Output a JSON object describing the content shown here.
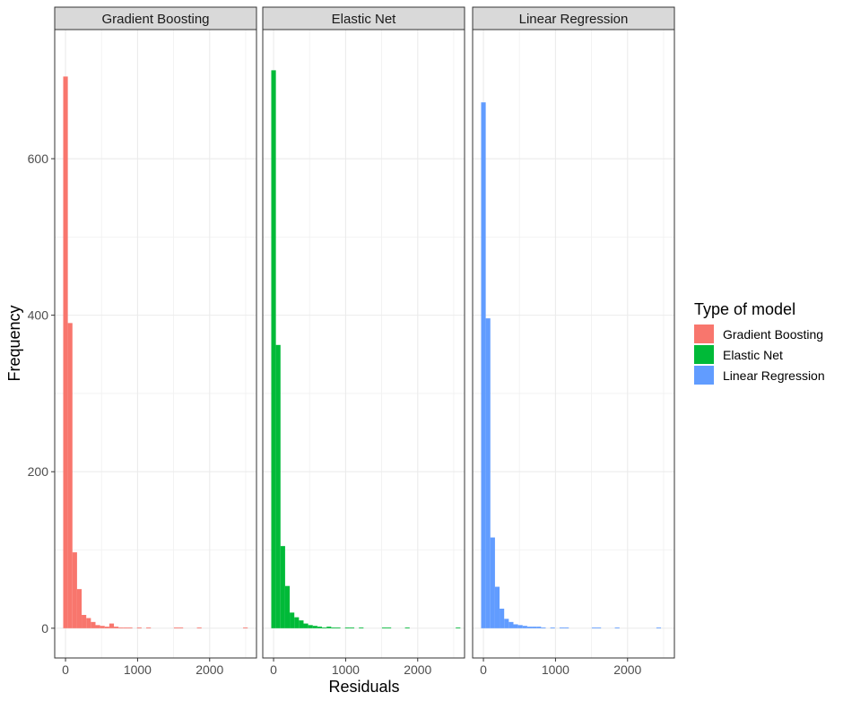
{
  "chart_data": {
    "type": "bar",
    "subtype": "histogram-faceted",
    "xlabel": "Residuals",
    "ylabel": "Frequency",
    "xlim": [
      -150,
      2650
    ],
    "ylim": [
      -38,
      765
    ],
    "x_ticks": [
      0,
      1000,
      2000
    ],
    "y_ticks": [
      0,
      200,
      400,
      600
    ],
    "grid": true,
    "legend_title": "Type of model",
    "legend_position": "right",
    "panels": [
      {
        "name": "Gradient Boosting",
        "color": "#F8766D",
        "bin_width": 64,
        "bins": [
          {
            "x": 0,
            "count": 705
          },
          {
            "x": 64,
            "count": 390
          },
          {
            "x": 128,
            "count": 97
          },
          {
            "x": 192,
            "count": 50
          },
          {
            "x": 256,
            "count": 17
          },
          {
            "x": 320,
            "count": 13
          },
          {
            "x": 384,
            "count": 8
          },
          {
            "x": 448,
            "count": 4
          },
          {
            "x": 512,
            "count": 3
          },
          {
            "x": 576,
            "count": 2
          },
          {
            "x": 640,
            "count": 6
          },
          {
            "x": 704,
            "count": 2
          },
          {
            "x": 768,
            "count": 1
          },
          {
            "x": 832,
            "count": 1
          },
          {
            "x": 896,
            "count": 1
          },
          {
            "x": 1024,
            "count": 1
          },
          {
            "x": 1152,
            "count": 1
          },
          {
            "x": 1536,
            "count": 1
          },
          {
            "x": 1600,
            "count": 1
          },
          {
            "x": 1856,
            "count": 1
          },
          {
            "x": 2496,
            "count": 1
          }
        ]
      },
      {
        "name": "Elastic Net",
        "color": "#00BA38",
        "bin_width": 64,
        "bins": [
          {
            "x": 0,
            "count": 713
          },
          {
            "x": 64,
            "count": 362
          },
          {
            "x": 128,
            "count": 105
          },
          {
            "x": 192,
            "count": 54
          },
          {
            "x": 256,
            "count": 20
          },
          {
            "x": 320,
            "count": 14
          },
          {
            "x": 384,
            "count": 10
          },
          {
            "x": 448,
            "count": 6
          },
          {
            "x": 512,
            "count": 4
          },
          {
            "x": 576,
            "count": 3
          },
          {
            "x": 640,
            "count": 2
          },
          {
            "x": 704,
            "count": 1
          },
          {
            "x": 768,
            "count": 2
          },
          {
            "x": 832,
            "count": 1
          },
          {
            "x": 896,
            "count": 1
          },
          {
            "x": 1024,
            "count": 1
          },
          {
            "x": 1088,
            "count": 1
          },
          {
            "x": 1216,
            "count": 1
          },
          {
            "x": 1536,
            "count": 1
          },
          {
            "x": 1600,
            "count": 1
          },
          {
            "x": 1856,
            "count": 1
          },
          {
            "x": 2560,
            "count": 1
          }
        ]
      },
      {
        "name": "Linear Regression",
        "color": "#619CFF",
        "bin_width": 64,
        "bins": [
          {
            "x": 0,
            "count": 672
          },
          {
            "x": 64,
            "count": 396
          },
          {
            "x": 128,
            "count": 116
          },
          {
            "x": 192,
            "count": 53
          },
          {
            "x": 256,
            "count": 25
          },
          {
            "x": 320,
            "count": 12
          },
          {
            "x": 384,
            "count": 8
          },
          {
            "x": 448,
            "count": 5
          },
          {
            "x": 512,
            "count": 4
          },
          {
            "x": 576,
            "count": 3
          },
          {
            "x": 640,
            "count": 2
          },
          {
            "x": 704,
            "count": 2
          },
          {
            "x": 768,
            "count": 2
          },
          {
            "x": 832,
            "count": 1
          },
          {
            "x": 960,
            "count": 1
          },
          {
            "x": 1088,
            "count": 1
          },
          {
            "x": 1152,
            "count": 1
          },
          {
            "x": 1536,
            "count": 1
          },
          {
            "x": 1600,
            "count": 1
          },
          {
            "x": 1856,
            "count": 1
          },
          {
            "x": 2432,
            "count": 1
          }
        ]
      }
    ]
  }
}
